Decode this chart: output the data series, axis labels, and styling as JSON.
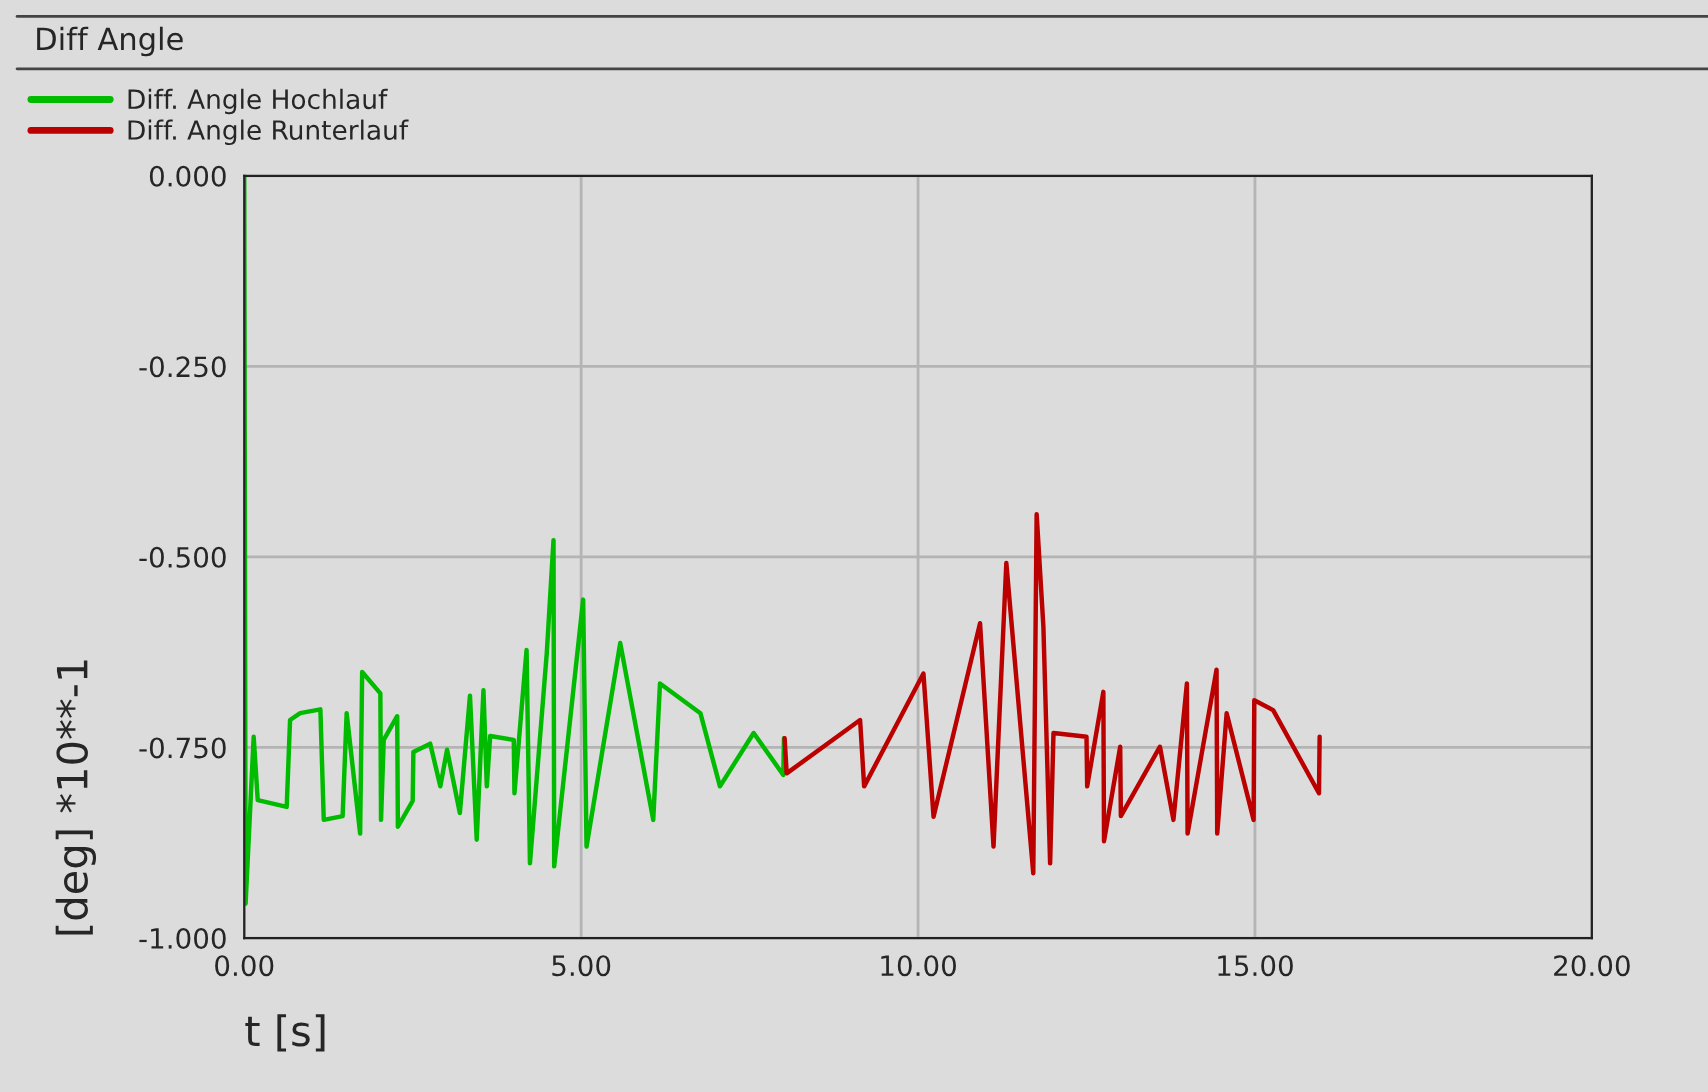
{
  "chart_data": {
    "type": "line",
    "title": "Diff Angle",
    "xlabel": "t [s]",
    "ylabel": "[deg] *10**-1",
    "xlim": [
      0,
      20
    ],
    "ylim": [
      -1,
      0
    ],
    "xticks": [
      {
        "value": 0,
        "label": "0.00"
      },
      {
        "value": 5,
        "label": "5.00"
      },
      {
        "value": 10,
        "label": "10.00"
      },
      {
        "value": 15,
        "label": "15.00"
      },
      {
        "value": 20,
        "label": "20.00"
      }
    ],
    "yticks": [
      {
        "value": -1,
        "label": "-1.000"
      },
      {
        "value": -0.75,
        "label": "-0.750"
      },
      {
        "value": -0.5,
        "label": "-0.500"
      },
      {
        "value": -0.25,
        "label": "-0.250"
      },
      {
        "value": 0,
        "label": "0.000"
      }
    ],
    "grid": true,
    "legend": "top left",
    "marker": "none",
    "line_style": "solid",
    "series": [
      {
        "name": "Diff. Angle Hochlauf",
        "color": "#00bb00",
        "x": [
          0,
          0.02,
          0.14,
          0.2,
          0.63,
          0.68,
          0.83,
          1.13,
          1.18,
          1.46,
          1.52,
          1.72,
          1.75,
          2.02,
          2.03,
          2.07,
          2.27,
          2.28,
          2.5,
          2.51,
          2.76,
          2.91,
          3.01,
          3.2,
          3.35,
          3.45,
          3.55,
          3.6,
          3.65,
          4.0,
          4.01,
          4.19,
          4.24,
          4.49,
          4.59,
          4.6,
          5.03,
          5.08,
          5.58,
          6.07,
          6.17,
          6.77,
          7.06,
          7.56,
          8.0,
          8.01
        ],
        "values": [
          0,
          -0.955,
          -0.736,
          -0.819,
          -0.828,
          -0.714,
          -0.705,
          -0.7,
          -0.845,
          -0.84,
          -0.705,
          -0.863,
          -0.651,
          -0.679,
          -0.845,
          -0.74,
          -0.709,
          -0.854,
          -0.82,
          -0.756,
          -0.745,
          -0.801,
          -0.753,
          -0.836,
          -0.682,
          -0.871,
          -0.675,
          -0.801,
          -0.735,
          -0.74,
          -0.81,
          -0.622,
          -0.902,
          -0.626,
          -0.478,
          -0.906,
          -0.556,
          -0.88,
          -0.613,
          -0.845,
          -0.666,
          -0.705,
          -0.801,
          -0.731,
          -0.786,
          -0.738
        ]
      },
      {
        "name": "Diff. Angle Runterlauf",
        "color": "#bb0000",
        "x": [
          8.02,
          8.05,
          9.14,
          9.2,
          10.08,
          10.23,
          10.92,
          11.12,
          11.31,
          11.71,
          11.76,
          11.86,
          11.96,
          12.01,
          12.5,
          12.51,
          12.75,
          12.76,
          13.0,
          13.01,
          13.59,
          13.79,
          13.99,
          14.0,
          14.43,
          14.44,
          14.58,
          14.98,
          14.99,
          15.27,
          15.95,
          15.96
        ],
        "values": [
          -0.738,
          -0.784,
          -0.714,
          -0.801,
          -0.653,
          -0.841,
          -0.587,
          -0.88,
          -0.508,
          -0.915,
          -0.444,
          -0.591,
          -0.902,
          -0.731,
          -0.736,
          -0.801,
          -0.677,
          -0.873,
          -0.749,
          -0.84,
          -0.749,
          -0.845,
          -0.666,
          -0.863,
          -0.648,
          -0.863,
          -0.705,
          -0.845,
          -0.688,
          -0.701,
          -0.81,
          -0.736
        ]
      }
    ]
  }
}
